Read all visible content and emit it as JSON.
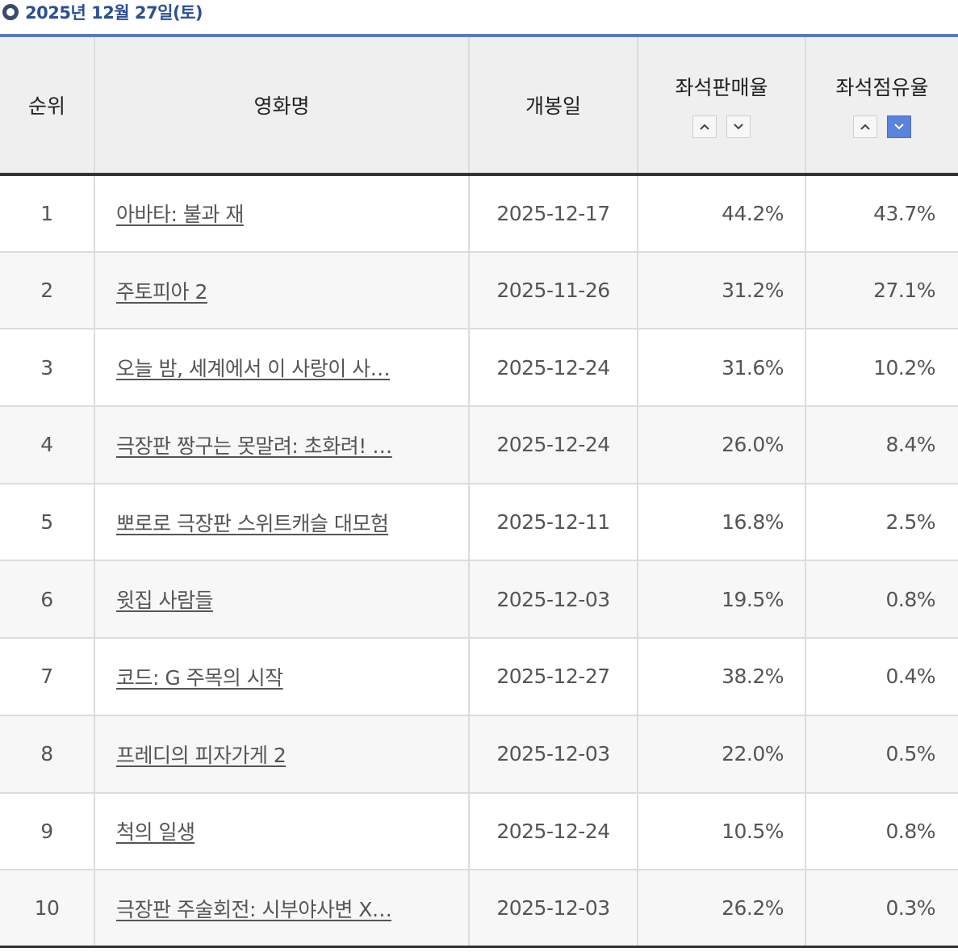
{
  "header": {
    "date": "2025년 12월 27일(토)"
  },
  "columns": {
    "rank": "순위",
    "title": "영화명",
    "release": "개봉일",
    "sales_rate": "좌석판매율",
    "share_rate": "좌석점유율"
  },
  "sort": {
    "sales_rate_active": "none",
    "share_rate_active": "desc"
  },
  "colors": {
    "accent": "#2c4f96",
    "active_sort": "#5b82dc"
  },
  "rows": [
    {
      "rank": "1",
      "title": "아바타: 불과 재",
      "release": "2025-12-17",
      "sales_rate": "44.2%",
      "share_rate": "43.7%"
    },
    {
      "rank": "2",
      "title": "주토피아 2",
      "release": "2025-11-26",
      "sales_rate": "31.2%",
      "share_rate": "27.1%"
    },
    {
      "rank": "3",
      "title": "오늘 밤, 세계에서 이 사랑이 사…",
      "release": "2025-12-24",
      "sales_rate": "31.6%",
      "share_rate": "10.2%"
    },
    {
      "rank": "4",
      "title": "극장판 짱구는 못말려: 초화려! …",
      "release": "2025-12-24",
      "sales_rate": "26.0%",
      "share_rate": "8.4%"
    },
    {
      "rank": "5",
      "title": "뽀로로 극장판 스위트캐슬 대모험",
      "release": "2025-12-11",
      "sales_rate": "16.8%",
      "share_rate": "2.5%"
    },
    {
      "rank": "6",
      "title": "윗집 사람들",
      "release": "2025-12-03",
      "sales_rate": "19.5%",
      "share_rate": "0.8%"
    },
    {
      "rank": "7",
      "title": "코드: G 주목의 시작",
      "release": "2025-12-27",
      "sales_rate": "38.2%",
      "share_rate": "0.4%"
    },
    {
      "rank": "8",
      "title": "프레디의 피자가게 2",
      "release": "2025-12-03",
      "sales_rate": "22.0%",
      "share_rate": "0.5%"
    },
    {
      "rank": "9",
      "title": "척의 일생",
      "release": "2025-12-24",
      "sales_rate": "10.5%",
      "share_rate": "0.8%"
    },
    {
      "rank": "10",
      "title": "극장판 주술회전: 시부야사변 X…",
      "release": "2025-12-03",
      "sales_rate": "26.2%",
      "share_rate": "0.3%"
    }
  ]
}
